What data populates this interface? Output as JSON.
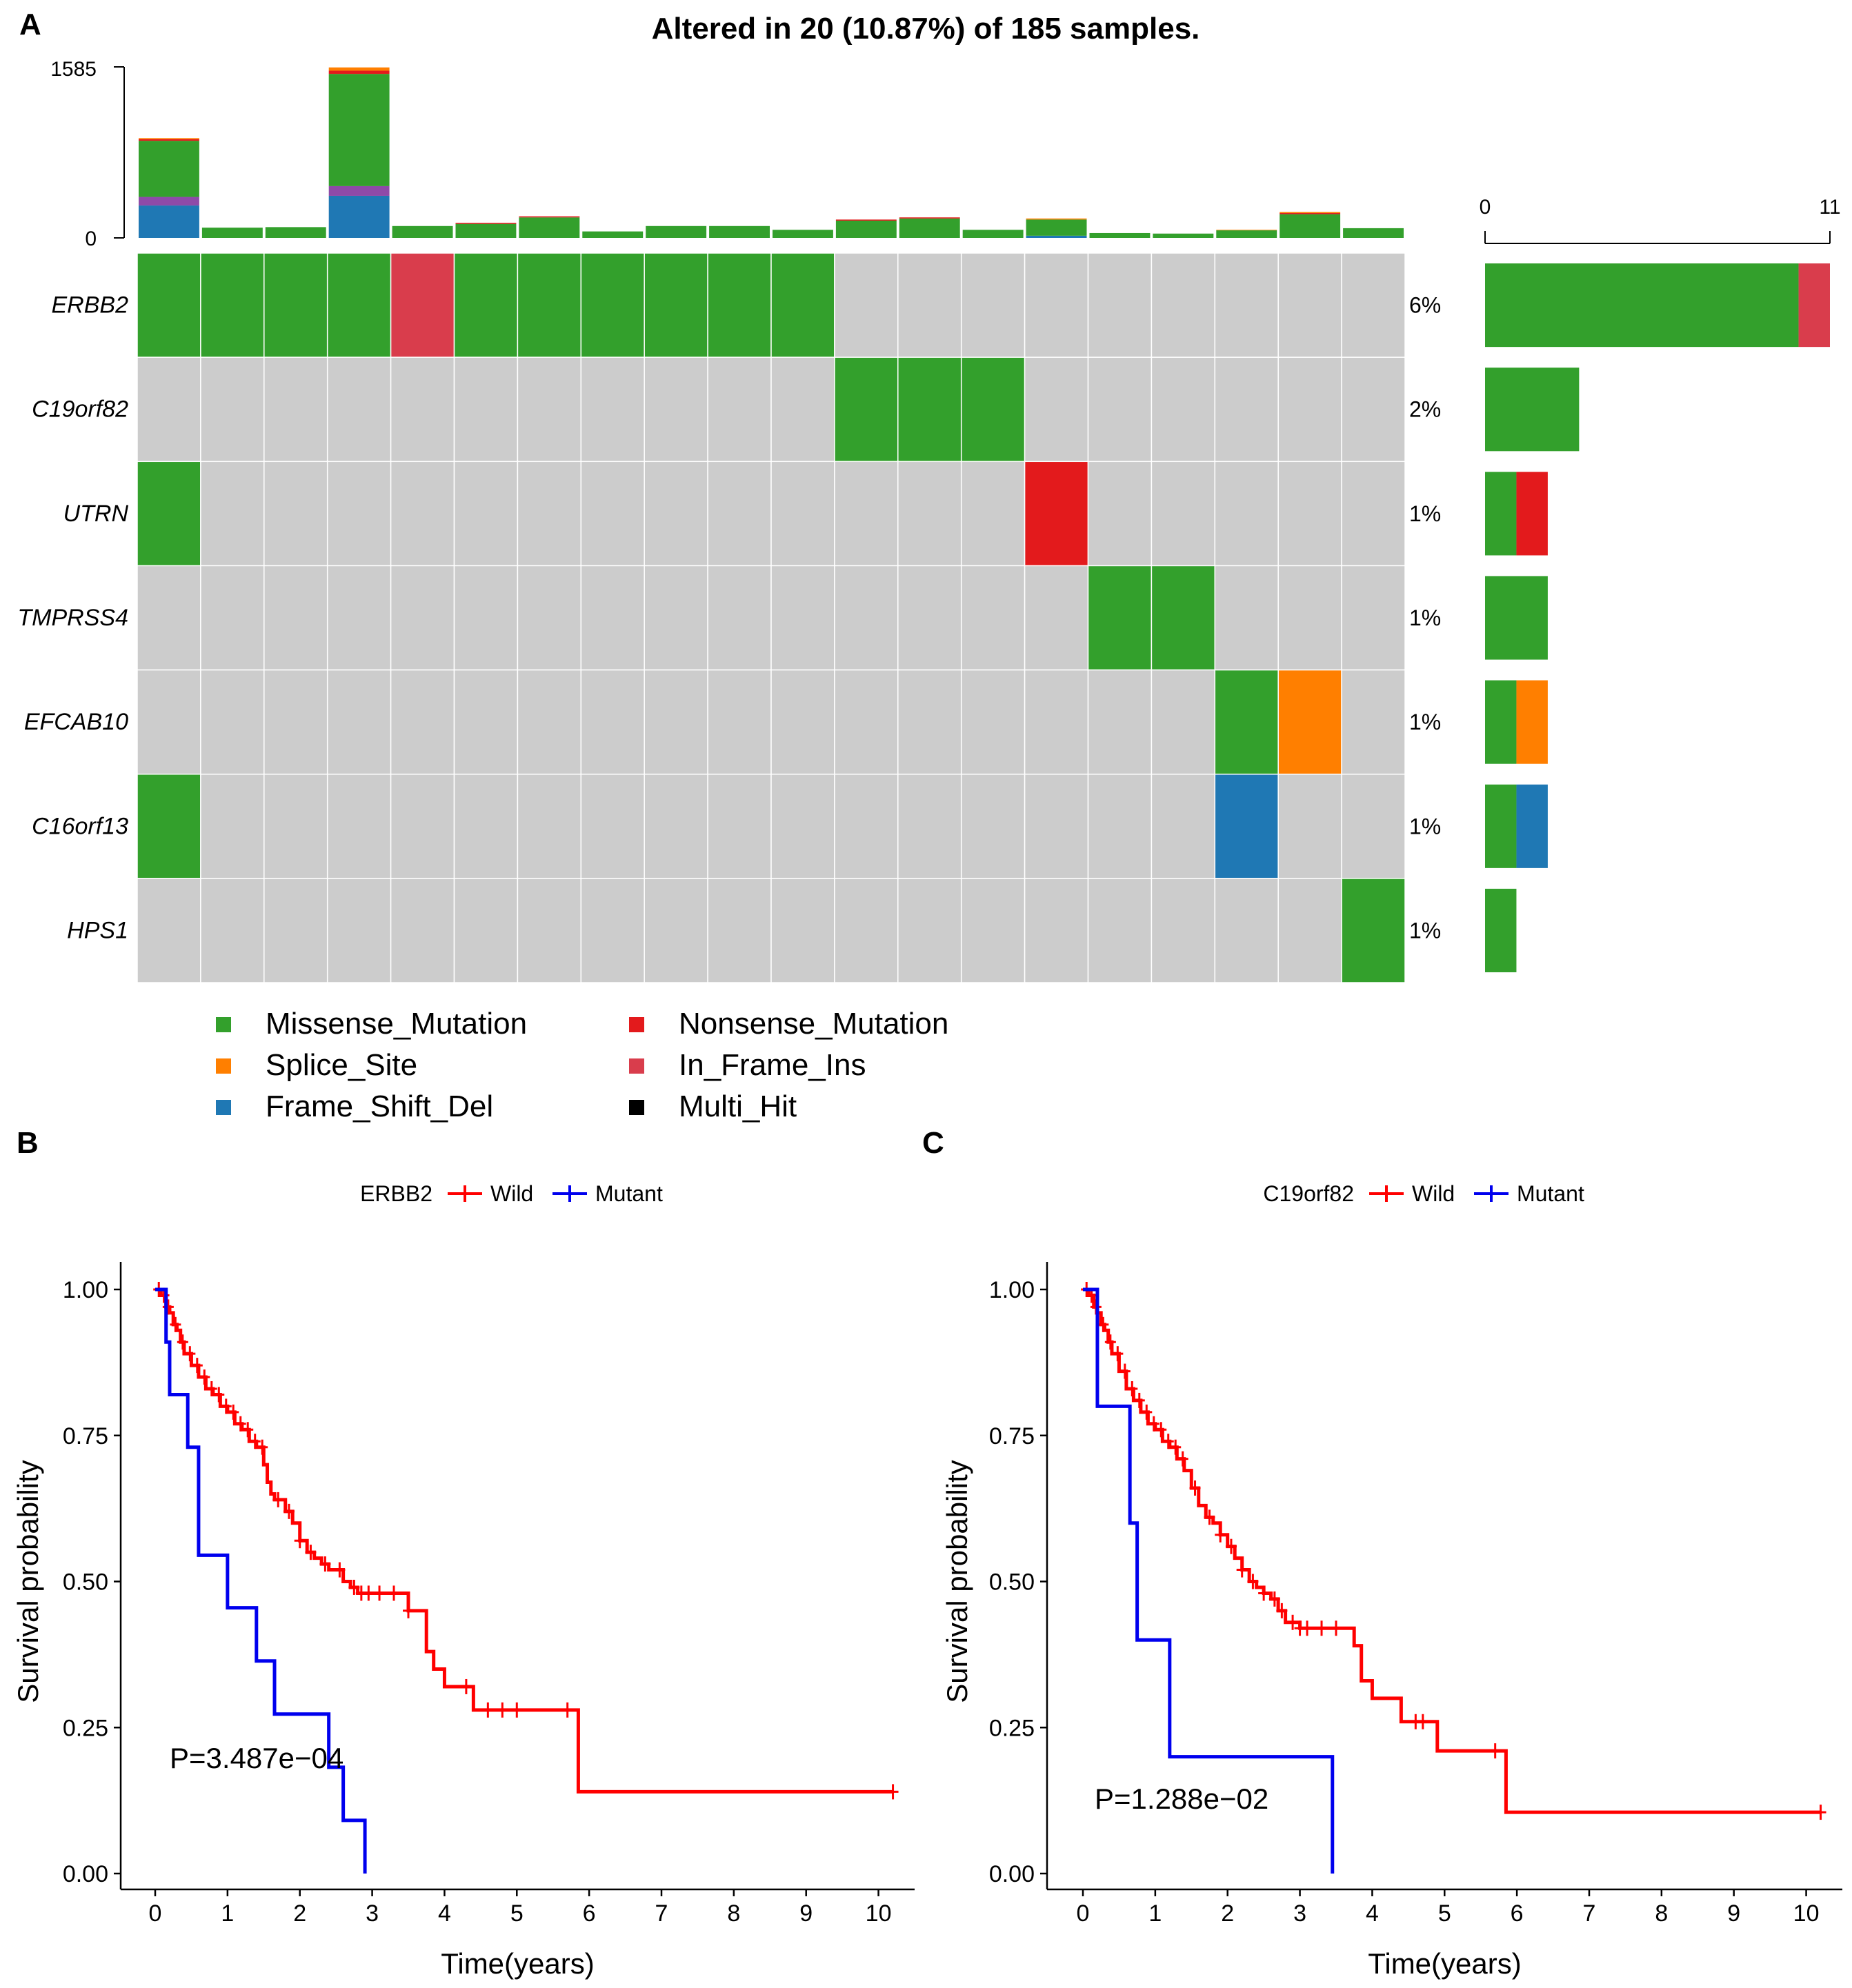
{
  "panel_labels": {
    "a": "A",
    "b": "B",
    "c": "C"
  },
  "colors": {
    "Missense_Mutation": "#33a02c",
    "Nonsense_Mutation": "#e31a1c",
    "Splice_Site": "#ff7f00",
    "In_Frame_Ins": "#d93d4c",
    "Frame_Shift_Del": "#1f78b4",
    "Multi_Hit": "#000000",
    "other_top": "#8e4aa8",
    "background": "#cccccc",
    "wild": "#ff0000",
    "mutant": "#0000ee"
  },
  "chart_data": [
    {
      "type": "heatmap",
      "title": "Altered in 20 (10.87%) of 185 samples.",
      "top_axis": {
        "max_label": "1585",
        "min_label": "0",
        "max": 1585
      },
      "tmb": [
        {
          "stack": {
            "Frame_Shift_Del": 300,
            "other_top": 80,
            "Missense_Mutation": 520,
            "Nonsense_Mutation": 15,
            "Splice_Site": 10
          }
        },
        {
          "stack": {
            "Missense_Mutation": 95
          }
        },
        {
          "stack": {
            "Missense_Mutation": 100
          }
        },
        {
          "stack": {
            "Frame_Shift_Del": 390,
            "other_top": 90,
            "Missense_Mutation": 1040,
            "Nonsense_Mutation": 30,
            "Splice_Site": 30
          }
        },
        {
          "stack": {
            "Missense_Mutation": 110
          }
        },
        {
          "stack": {
            "Missense_Mutation": 130,
            "Nonsense_Mutation": 10
          }
        },
        {
          "stack": {
            "Missense_Mutation": 190,
            "Nonsense_Mutation": 10
          }
        },
        {
          "stack": {
            "Missense_Mutation": 60
          }
        },
        {
          "stack": {
            "Missense_Mutation": 110
          }
        },
        {
          "stack": {
            "Missense_Mutation": 110
          }
        },
        {
          "stack": {
            "Missense_Mutation": 75
          }
        },
        {
          "stack": {
            "Missense_Mutation": 160,
            "Nonsense_Mutation": 10
          }
        },
        {
          "stack": {
            "Missense_Mutation": 180,
            "Nonsense_Mutation": 10
          }
        },
        {
          "stack": {
            "Missense_Mutation": 75
          }
        },
        {
          "stack": {
            "Frame_Shift_Del": 20,
            "Missense_Mutation": 150,
            "Splice_Site": 10
          }
        },
        {
          "stack": {
            "Missense_Mutation": 45
          }
        },
        {
          "stack": {
            "Missense_Mutation": 40
          }
        },
        {
          "stack": {
            "Missense_Mutation": 70,
            "Splice_Site": 5
          }
        },
        {
          "stack": {
            "Missense_Mutation": 220,
            "Nonsense_Mutation": 10,
            "Splice_Site": 10
          }
        },
        {
          "stack": {
            "Missense_Mutation": 90
          }
        }
      ],
      "genes": [
        {
          "name": "ERBB2",
          "pct": "6%",
          "cells": {
            "0": "Missense_Mutation",
            "1": "Missense_Mutation",
            "2": "Missense_Mutation",
            "3": "Missense_Mutation",
            "4": "In_Frame_Ins",
            "5": "Missense_Mutation",
            "6": "Missense_Mutation",
            "7": "Missense_Mutation",
            "8": "Missense_Mutation",
            "9": "Missense_Mutation",
            "10": "Missense_Mutation"
          },
          "counts": {
            "Missense_Mutation": 10,
            "In_Frame_Ins": 1
          }
        },
        {
          "name": "C19orf82",
          "pct": "2%",
          "cells": {
            "11": "Missense_Mutation",
            "12": "Missense_Mutation",
            "13": "Missense_Mutation"
          },
          "counts": {
            "Missense_Mutation": 3
          }
        },
        {
          "name": "UTRN",
          "pct": "1%",
          "cells": {
            "0": "Missense_Mutation",
            "14": "Nonsense_Mutation"
          },
          "counts": {
            "Missense_Mutation": 1,
            "Nonsense_Mutation": 1
          }
        },
        {
          "name": "TMPRSS4",
          "pct": "1%",
          "cells": {
            "15": "Missense_Mutation",
            "16": "Missense_Mutation"
          },
          "counts": {
            "Missense_Mutation": 2
          }
        },
        {
          "name": "EFCAB10",
          "pct": "1%",
          "cells": {
            "17": "Missense_Mutation",
            "18": "Splice_Site"
          },
          "counts": {
            "Missense_Mutation": 1,
            "Splice_Site": 1
          }
        },
        {
          "name": "C16orf13",
          "pct": "1%",
          "cells": {
            "0": "Missense_Mutation",
            "17": "Frame_Shift_Del"
          },
          "counts": {
            "Missense_Mutation": 1,
            "Frame_Shift_Del": 1
          }
        },
        {
          "name": "HPS1",
          "pct": "1%",
          "cells": {
            "19": "Missense_Mutation"
          },
          "counts": {
            "Missense_Mutation": 1
          }
        }
      ],
      "right_axis": {
        "min_label": "0",
        "max_label": "11",
        "max": 11
      },
      "legend": [
        {
          "key": "Missense_Mutation",
          "label": "Missense_Mutation"
        },
        {
          "key": "Nonsense_Mutation",
          "label": "Nonsense_Mutation"
        },
        {
          "key": "Splice_Site",
          "label": "Splice_Site"
        },
        {
          "key": "In_Frame_Ins",
          "label": "In_Frame_Ins"
        },
        {
          "key": "Frame_Shift_Del",
          "label": "Frame_Shift_Del"
        },
        {
          "key": "Multi_Hit",
          "label": "Multi_Hit"
        }
      ]
    },
    {
      "type": "line",
      "title": "",
      "strata_label": "ERBB2",
      "xlabel": "Time(years)",
      "ylabel": "Survival probability",
      "xlim": [
        0,
        10.5
      ],
      "ylim": [
        0,
        1
      ],
      "xticks": [
        0,
        1,
        2,
        3,
        4,
        5,
        6,
        7,
        8,
        9,
        10
      ],
      "yticks": [
        "0.00",
        "0.25",
        "0.50",
        "0.75",
        "1.00"
      ],
      "pvalue": "P=3.487e−04",
      "series": [
        {
          "name": "Wild",
          "color": "#ff0000",
          "x": [
            0,
            0.08,
            0.15,
            0.2,
            0.25,
            0.3,
            0.35,
            0.4,
            0.5,
            0.6,
            0.7,
            0.8,
            0.9,
            1.0,
            1.1,
            1.2,
            1.3,
            1.4,
            1.5,
            1.55,
            1.6,
            1.65,
            1.8,
            1.9,
            2.0,
            2.1,
            2.2,
            2.3,
            2.4,
            2.5,
            2.6,
            2.7,
            2.8,
            3.0,
            3.5,
            3.75,
            3.85,
            4.0,
            4.4,
            5.85,
            10.2
          ],
          "y": [
            1.0,
            0.99,
            0.97,
            0.96,
            0.94,
            0.93,
            0.91,
            0.89,
            0.87,
            0.85,
            0.83,
            0.82,
            0.8,
            0.79,
            0.77,
            0.76,
            0.74,
            0.73,
            0.7,
            0.67,
            0.65,
            0.64,
            0.62,
            0.6,
            0.57,
            0.55,
            0.54,
            0.53,
            0.52,
            0.52,
            0.5,
            0.49,
            0.48,
            0.48,
            0.45,
            0.38,
            0.35,
            0.32,
            0.28,
            0.14,
            0.14
          ],
          "censor_x": [
            0.05,
            0.12,
            0.18,
            0.28,
            0.38,
            0.48,
            0.58,
            0.68,
            0.78,
            0.88,
            0.98,
            1.08,
            1.18,
            1.28,
            1.38,
            1.48,
            1.7,
            1.85,
            2.0,
            2.15,
            2.35,
            2.55,
            2.75,
            2.85,
            2.95,
            3.1,
            3.3,
            3.5,
            4.3,
            4.6,
            4.8,
            5.0,
            5.7,
            10.2
          ]
        },
        {
          "name": "Mutant",
          "color": "#0000ee",
          "x": [
            0,
            0.15,
            0.2,
            0.45,
            0.6,
            1.0,
            1.4,
            1.65,
            2.4,
            2.6,
            2.9
          ],
          "y": [
            1.0,
            0.91,
            0.82,
            0.73,
            0.545,
            0.455,
            0.364,
            0.273,
            0.182,
            0.091,
            0.0
          ],
          "censor_x": []
        }
      ]
    },
    {
      "type": "line",
      "title": "",
      "strata_label": "C19orf82",
      "xlabel": "Time(years)",
      "ylabel": "Survival probability",
      "xlim": [
        0,
        10.5
      ],
      "ylim": [
        0,
        1
      ],
      "xticks": [
        0,
        1,
        2,
        3,
        4,
        5,
        6,
        7,
        8,
        9,
        10
      ],
      "yticks": [
        "0.00",
        "0.25",
        "0.50",
        "0.75",
        "1.00"
      ],
      "pvalue": "P=1.288e−02",
      "series": [
        {
          "name": "Wild",
          "color": "#ff0000",
          "x": [
            0,
            0.08,
            0.15,
            0.2,
            0.25,
            0.3,
            0.35,
            0.4,
            0.5,
            0.6,
            0.7,
            0.8,
            0.9,
            1.0,
            1.1,
            1.2,
            1.3,
            1.4,
            1.5,
            1.6,
            1.7,
            1.8,
            1.9,
            2.0,
            2.1,
            2.2,
            2.3,
            2.4,
            2.5,
            2.6,
            2.7,
            2.8,
            3.0,
            3.5,
            3.75,
            3.85,
            4.0,
            4.4,
            4.9,
            5.85,
            10.2
          ],
          "y": [
            1.0,
            0.99,
            0.97,
            0.96,
            0.94,
            0.93,
            0.91,
            0.89,
            0.86,
            0.83,
            0.81,
            0.79,
            0.77,
            0.76,
            0.74,
            0.73,
            0.71,
            0.69,
            0.66,
            0.63,
            0.61,
            0.6,
            0.58,
            0.56,
            0.54,
            0.52,
            0.5,
            0.49,
            0.48,
            0.47,
            0.45,
            0.43,
            0.42,
            0.42,
            0.39,
            0.33,
            0.3,
            0.26,
            0.21,
            0.105,
            0.105
          ],
          "censor_x": [
            0.05,
            0.12,
            0.18,
            0.28,
            0.38,
            0.48,
            0.58,
            0.68,
            0.78,
            0.88,
            0.98,
            1.08,
            1.18,
            1.28,
            1.38,
            1.55,
            1.75,
            1.9,
            2.05,
            2.2,
            2.35,
            2.5,
            2.65,
            2.75,
            2.9,
            3.0,
            3.1,
            3.3,
            3.5,
            4.6,
            4.7,
            5.7,
            10.2
          ]
        },
        {
          "name": "Mutant",
          "color": "#0000ee",
          "x": [
            0,
            0.2,
            0.65,
            0.75,
            1.2,
            3.45
          ],
          "y": [
            1.0,
            0.8,
            0.6,
            0.4,
            0.2,
            0.0
          ],
          "censor_x": []
        }
      ]
    }
  ]
}
